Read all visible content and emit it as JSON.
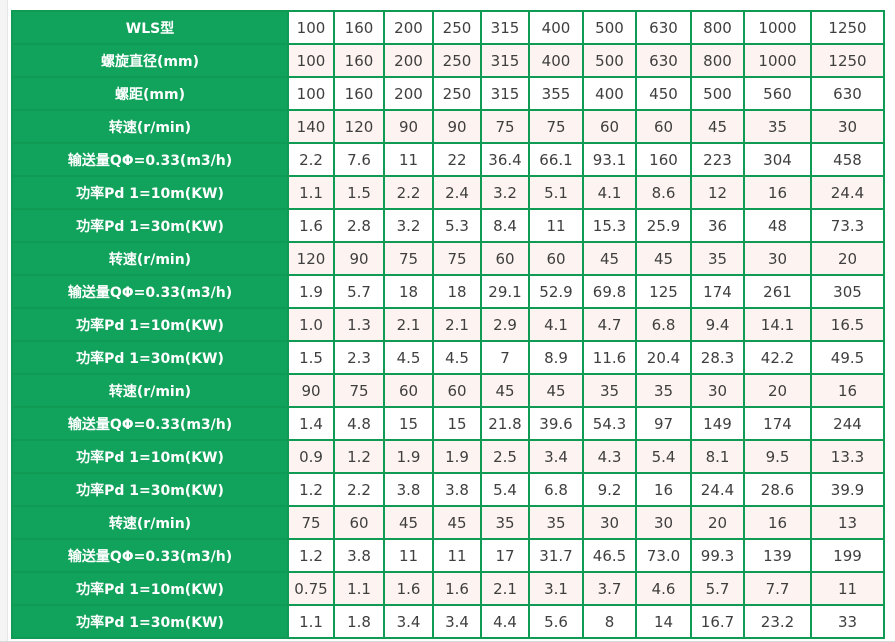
{
  "colors": {
    "table_green": "#11a35c",
    "table_border_green": "#0f9b54",
    "row_alt_pink": "#fdf4f1",
    "row_white": "#ffffff",
    "cell_text": "#3f3f3f",
    "label_text": "#ffffff",
    "page_gutter": "#f4f4f4",
    "page_edge_line": "#d9d9d9"
  },
  "table": {
    "rows": [
      {
        "label": "WLS型",
        "values": [
          "100",
          "160",
          "200",
          "250",
          "315",
          "400",
          "500",
          "630",
          "800",
          "1000",
          "1250"
        ]
      },
      {
        "label": "螺旋直径(mm)",
        "values": [
          "100",
          "160",
          "200",
          "250",
          "315",
          "400",
          "500",
          "630",
          "800",
          "1000",
          "1250"
        ]
      },
      {
        "label": "螺距(mm)",
        "values": [
          "100",
          "160",
          "200",
          "250",
          "315",
          "355",
          "400",
          "450",
          "500",
          "560",
          "630"
        ]
      },
      {
        "label": "转速(r/min)",
        "values": [
          "140",
          "120",
          "90",
          "90",
          "75",
          "75",
          "60",
          "60",
          "45",
          "35",
          "30"
        ]
      },
      {
        "label": "输送量QΦ=0.33(m3/h)",
        "values": [
          "2.2",
          "7.6",
          "11",
          "22",
          "36.4",
          "66.1",
          "93.1",
          "160",
          "223",
          "304",
          "458"
        ]
      },
      {
        "label": "功率Pd 1=10m(KW)",
        "values": [
          "1.1",
          "1.5",
          "2.2",
          "2.4",
          "3.2",
          "5.1",
          "4.1",
          "8.6",
          "12",
          "16",
          "24.4"
        ]
      },
      {
        "label": "功率Pd 1=30m(KW)",
        "values": [
          "1.6",
          "2.8",
          "3.2",
          "5.3",
          "8.4",
          "11",
          "15.3",
          "25.9",
          "36",
          "48",
          "73.3"
        ]
      },
      {
        "label": "转速(r/min)",
        "values": [
          "120",
          "90",
          "75",
          "75",
          "60",
          "60",
          "45",
          "45",
          "35",
          "30",
          "20"
        ]
      },
      {
        "label": "输送量QΦ=0.33(m3/h)",
        "values": [
          "1.9",
          "5.7",
          "18",
          "18",
          "29.1",
          "52.9",
          "69.8",
          "125",
          "174",
          "261",
          "305"
        ]
      },
      {
        "label": "功率Pd 1=10m(KW)",
        "values": [
          "1.0",
          "1.3",
          "2.1",
          "2.1",
          "2.9",
          "4.1",
          "4.7",
          "6.8",
          "9.4",
          "14.1",
          "16.5"
        ]
      },
      {
        "label": "功率Pd 1=30m(KW)",
        "values": [
          "1.5",
          "2.3",
          "4.5",
          "4.5",
          "7",
          "8.9",
          "11.6",
          "20.4",
          "28.3",
          "42.2",
          "49.5"
        ]
      },
      {
        "label": "转速(r/min)",
        "values": [
          "90",
          "75",
          "60",
          "60",
          "45",
          "45",
          "35",
          "35",
          "30",
          "20",
          "16"
        ]
      },
      {
        "label": "输送量QΦ=0.33(m3/h)",
        "values": [
          "1.4",
          "4.8",
          "15",
          "15",
          "21.8",
          "39.6",
          "54.3",
          "97",
          "149",
          "174",
          "244"
        ]
      },
      {
        "label": "功率Pd 1=10m(KW)",
        "values": [
          "0.9",
          "1.2",
          "1.9",
          "1.9",
          "2.5",
          "3.4",
          "4.3",
          "5.4",
          "8.1",
          "9.5",
          "13.3"
        ]
      },
      {
        "label": "功率Pd 1=30m(KW)",
        "values": [
          "1.2",
          "2.2",
          "3.8",
          "3.8",
          "5.4",
          "6.8",
          "9.2",
          "16",
          "24.4",
          "28.6",
          "39.9"
        ]
      },
      {
        "label": "转速(r/min)",
        "values": [
          "75",
          "60",
          "45",
          "45",
          "35",
          "35",
          "30",
          "30",
          "20",
          "16",
          "13"
        ]
      },
      {
        "label": "输送量QΦ=0.33(m3/h)",
        "values": [
          "1.2",
          "3.8",
          "11",
          "11",
          "17",
          "31.7",
          "46.5",
          "73.0",
          "99.3",
          "139",
          "199"
        ]
      },
      {
        "label": "功率Pd 1=10m(KW)",
        "values": [
          "0.75",
          "1.1",
          "1.6",
          "1.6",
          "2.1",
          "3.1",
          "3.7",
          "4.6",
          "5.7",
          "7.7",
          "11"
        ]
      },
      {
        "label": "功率Pd 1=30m(KW)",
        "values": [
          "1.1",
          "1.8",
          "3.4",
          "3.4",
          "4.4",
          "5.6",
          "8",
          "14",
          "16.7",
          "23.2",
          "33"
        ]
      }
    ]
  }
}
